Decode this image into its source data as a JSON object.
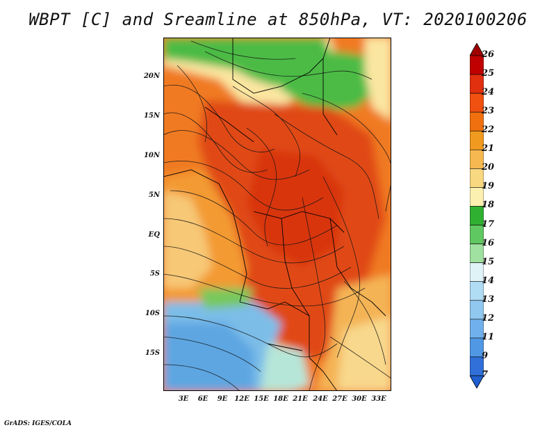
{
  "title": "WBPT [C] and Sreamline at 850hPa, VT: 2020100206",
  "map": {
    "lat_labels": [
      "20N",
      "15N",
      "10N",
      "5N",
      "EQ",
      "5S",
      "10S",
      "15S"
    ],
    "lon_labels": [
      "3E",
      "6E",
      "9E",
      "12E",
      "15E",
      "18E",
      "21E",
      "24E",
      "27E",
      "30E",
      "33E"
    ]
  },
  "colorbar": {
    "levels": [
      "26",
      "25",
      "24",
      "23",
      "22",
      "21",
      "20",
      "19",
      "18",
      "17",
      "16",
      "15",
      "14",
      "13",
      "12",
      "11",
      "9",
      "7"
    ],
    "colors": [
      "#a00000",
      "#c00000",
      "#e03010",
      "#f05010",
      "#f07010",
      "#f09a20",
      "#f6b850",
      "#f8d880",
      "#fcf0b0",
      "#30b030",
      "#60c860",
      "#a0e0a0",
      "#e0f4f8",
      "#b0dcf4",
      "#90c8f0",
      "#70b0ec",
      "#5098e4",
      "#3070d8",
      "#1f5fd0"
    ]
  },
  "footer": "GrADS: IGES/COLA"
}
